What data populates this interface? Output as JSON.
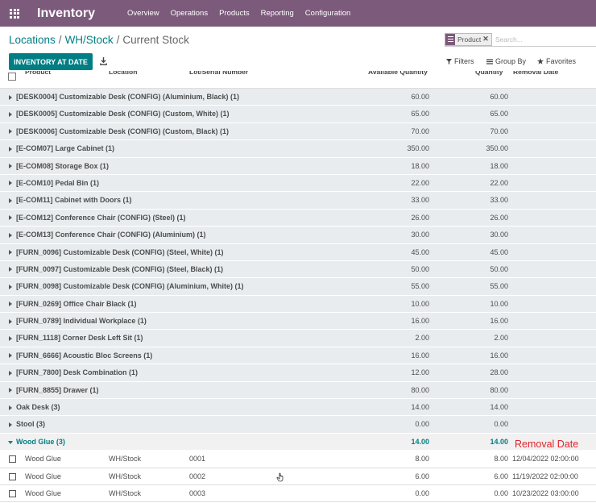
{
  "app": {
    "title": "Inventory",
    "menu": [
      "Overview",
      "Operations",
      "Products",
      "Reporting",
      "Configuration"
    ]
  },
  "breadcrumb": {
    "items": [
      "Locations",
      "WH/Stock"
    ],
    "current": "Current Stock"
  },
  "search": {
    "facet": "Product",
    "placeholder": "Search..."
  },
  "controls": {
    "primary_button": "INVENTORY AT DATE",
    "filters": "Filters",
    "group_by": "Group By",
    "favorites": "Favorites"
  },
  "columns": {
    "product": "Product",
    "location": "Location",
    "lot": "Lot/Serial Number",
    "available": "Available Quantity",
    "quantity": "Quantity",
    "removal_date": "Removal Date"
  },
  "groups": [
    {
      "name": "[DESK0004] Customizable Desk (CONFIG) (Aluminium, Black) (1)",
      "available": "60.00",
      "quantity": "60.00"
    },
    {
      "name": "[DESK0005] Customizable Desk (CONFIG) (Custom, White) (1)",
      "available": "65.00",
      "quantity": "65.00"
    },
    {
      "name": "[DESK0006] Customizable Desk (CONFIG) (Custom, Black) (1)",
      "available": "70.00",
      "quantity": "70.00"
    },
    {
      "name": "[E-COM07] Large Cabinet (1)",
      "available": "350.00",
      "quantity": "350.00"
    },
    {
      "name": "[E-COM08] Storage Box (1)",
      "available": "18.00",
      "quantity": "18.00"
    },
    {
      "name": "[E-COM10] Pedal Bin (1)",
      "available": "22.00",
      "quantity": "22.00"
    },
    {
      "name": "[E-COM11] Cabinet with Doors (1)",
      "available": "33.00",
      "quantity": "33.00"
    },
    {
      "name": "[E-COM12] Conference Chair (CONFIG) (Steel) (1)",
      "available": "26.00",
      "quantity": "26.00"
    },
    {
      "name": "[E-COM13] Conference Chair (CONFIG) (Aluminium) (1)",
      "available": "30.00",
      "quantity": "30.00"
    },
    {
      "name": "[FURN_0096] Customizable Desk (CONFIG) (Steel, White) (1)",
      "available": "45.00",
      "quantity": "45.00"
    },
    {
      "name": "[FURN_0097] Customizable Desk (CONFIG) (Steel, Black) (1)",
      "available": "50.00",
      "quantity": "50.00"
    },
    {
      "name": "[FURN_0098] Customizable Desk (CONFIG) (Aluminium, White) (1)",
      "available": "55.00",
      "quantity": "55.00"
    },
    {
      "name": "[FURN_0269] Office Chair Black (1)",
      "available": "10.00",
      "quantity": "10.00"
    },
    {
      "name": "[FURN_0789] Individual Workplace (1)",
      "available": "16.00",
      "quantity": "16.00"
    },
    {
      "name": "[FURN_1118] Corner Desk Left Sit (1)",
      "available": "2.00",
      "quantity": "2.00"
    },
    {
      "name": "[FURN_6666] Acoustic Bloc Screens (1)",
      "available": "16.00",
      "quantity": "16.00"
    },
    {
      "name": "[FURN_7800] Desk Combination (1)",
      "available": "12.00",
      "quantity": "28.00"
    },
    {
      "name": "[FURN_8855] Drawer (1)",
      "available": "80.00",
      "quantity": "80.00"
    },
    {
      "name": "Oak Desk (3)",
      "available": "14.00",
      "quantity": "14.00"
    },
    {
      "name": "Stool (3)",
      "available": "0.00",
      "quantity": "0.00"
    }
  ],
  "open_group": {
    "name": "Wood Glue (3)",
    "available": "14.00",
    "quantity": "14.00"
  },
  "details": [
    {
      "product": "Wood Glue",
      "location": "WH/Stock",
      "lot": "0001",
      "available": "8.00",
      "quantity": "8.00",
      "removal_date": "12/04/2022 02:00:00"
    },
    {
      "product": "Wood Glue",
      "location": "WH/Stock",
      "lot": "0002",
      "available": "6.00",
      "quantity": "6.00",
      "removal_date": "11/19/2022 02:00:00"
    },
    {
      "product": "Wood Glue",
      "location": "WH/Stock",
      "lot": "0003",
      "available": "0.00",
      "quantity": "0.00",
      "removal_date": "10/23/2022 03:00:00"
    }
  ],
  "annotation": {
    "text": "Removal Date",
    "color": "#e0242d"
  },
  "colors": {
    "brand": "#7c5a7b",
    "accent": "#017e84"
  }
}
